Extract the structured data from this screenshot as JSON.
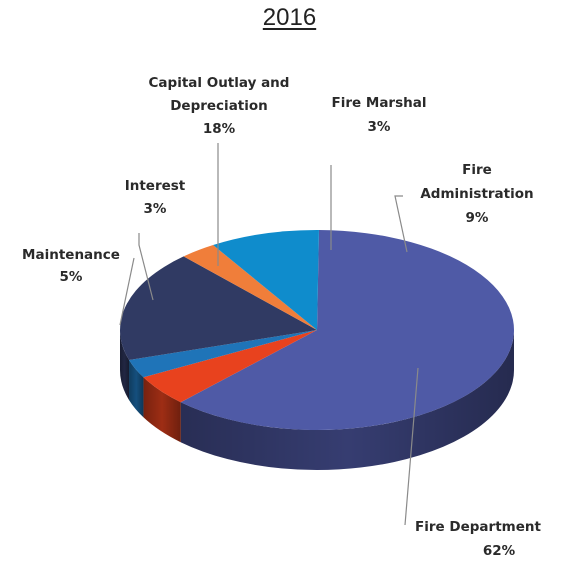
{
  "chart_data": {
    "type": "pie",
    "title": "2016",
    "slices": [
      {
        "label": "Fire Department",
        "value": 62,
        "value_text": "62%",
        "color": "#4f5aa6"
      },
      {
        "label": "Maintenance",
        "value": 5,
        "value_text": "5%",
        "color": "#e8421e"
      },
      {
        "label": "Interest",
        "value": 3,
        "value_text": "3%",
        "color": "#1f74b8"
      },
      {
        "label": "Capital Outlay and Depreciation",
        "value": 18,
        "value_text": "18%",
        "color": "#303a63"
      },
      {
        "label": "Fire Marshal",
        "value": 3,
        "value_text": "3%",
        "color": "#f07e3a"
      },
      {
        "label": "Fire Administration",
        "value": 9,
        "value_text": "9%",
        "color": "#0f8ccc"
      }
    ]
  }
}
